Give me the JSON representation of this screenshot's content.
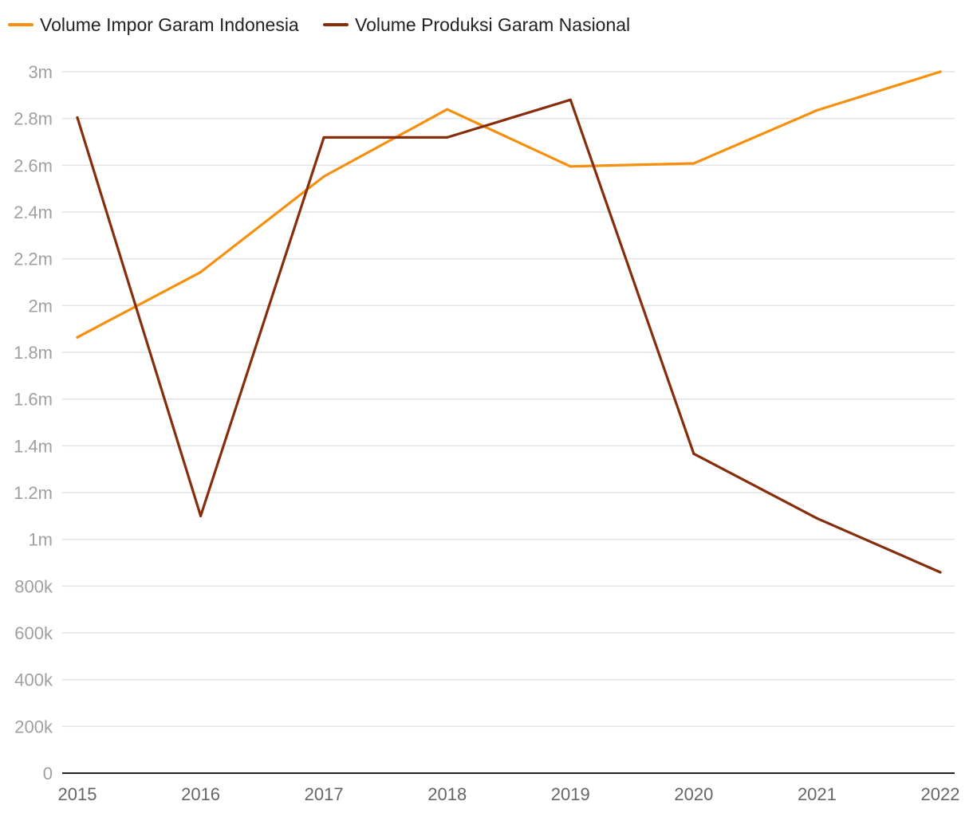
{
  "chart_data": {
    "type": "line",
    "title": "",
    "xlabel": "",
    "ylabel": "",
    "categories": [
      "2015",
      "2016",
      "2017",
      "2018",
      "2019",
      "2020",
      "2021",
      "2022"
    ],
    "ylim": [
      0,
      3000000
    ],
    "yticks": [
      {
        "value": 0,
        "label": "0"
      },
      {
        "value": 200000,
        "label": "200k"
      },
      {
        "value": 400000,
        "label": "400k"
      },
      {
        "value": 600000,
        "label": "600k"
      },
      {
        "value": 800000,
        "label": "800k"
      },
      {
        "value": 1000000,
        "label": "1m"
      },
      {
        "value": 1200000,
        "label": "1.2m"
      },
      {
        "value": 1400000,
        "label": "1.4m"
      },
      {
        "value": 1600000,
        "label": "1.6m"
      },
      {
        "value": 1800000,
        "label": "1.8m"
      },
      {
        "value": 2000000,
        "label": "2m"
      },
      {
        "value": 2200000,
        "label": "2.2m"
      },
      {
        "value": 2400000,
        "label": "2.4m"
      },
      {
        "value": 2600000,
        "label": "2.6m"
      },
      {
        "value": 2800000,
        "label": "2.8m"
      },
      {
        "value": 3000000,
        "label": "3m"
      }
    ],
    "grid": true,
    "legend_position": "top-left",
    "series": [
      {
        "name": "Volume Impor Garam Indonesia",
        "color": "#f5900f",
        "values": [
          1864000,
          2143000,
          2552000,
          2839000,
          2595000,
          2608000,
          2835000,
          3000000
        ]
      },
      {
        "name": "Volume Produksi Garam Nasional",
        "color": "#862d0b",
        "values": [
          2804000,
          1100000,
          2719000,
          2719000,
          2880000,
          1366000,
          1090000,
          859000
        ]
      }
    ]
  }
}
